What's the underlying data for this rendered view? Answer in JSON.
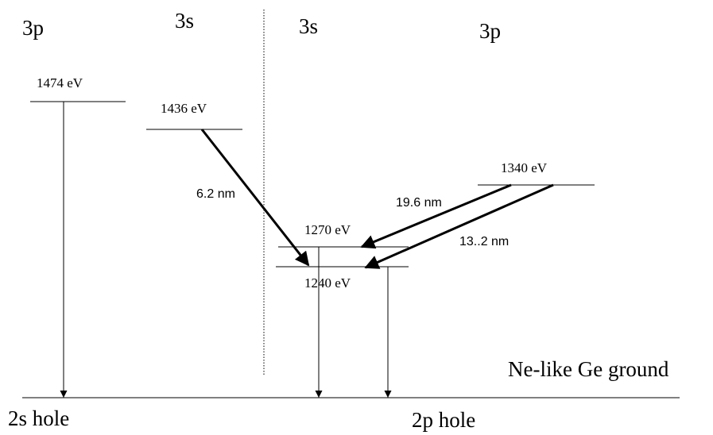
{
  "shells": [
    "3p",
    "3s",
    "3s",
    "3p"
  ],
  "levels": [
    "1474 eV",
    "1436 eV",
    "1340 eV",
    "1270 eV",
    "1240 eV"
  ],
  "transitions": [
    "6.2 nm",
    "19.6 nm",
    "13..2 nm"
  ],
  "ground": "Ne-like Ge ground",
  "holes": [
    "2s hole",
    "2p hole"
  ]
}
